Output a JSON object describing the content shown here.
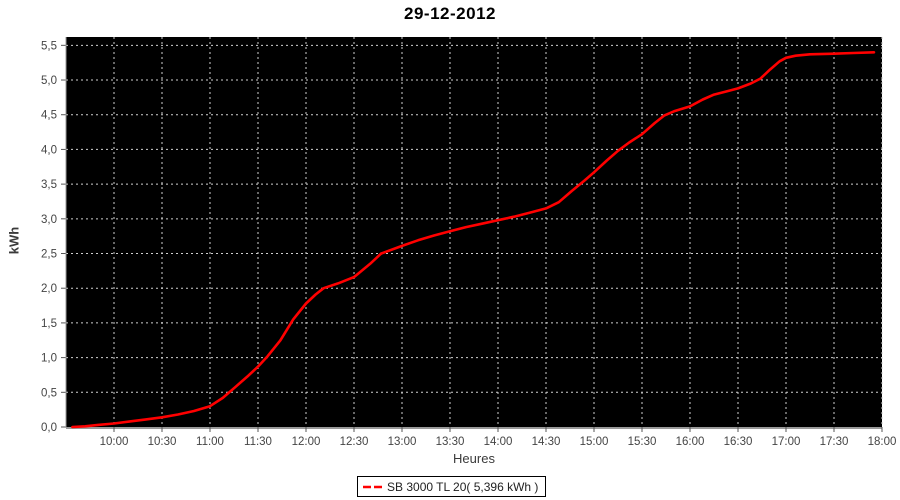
{
  "title": "29-12-2012",
  "axes": {
    "x_label": "Heures",
    "y_label": "kWh"
  },
  "legend": {
    "label": "SB 3000 TL 20( 5,396 kWh )",
    "swatch_color": "#ff0000"
  },
  "colors": {
    "plot_background": "#000000",
    "gridline": "#cfcfcf",
    "baseline": "#9a9a9a",
    "tick": "#555555",
    "tick_label": "#444444",
    "line": "#ff0000",
    "page_background": "#ffffff"
  },
  "chart_data": {
    "type": "line",
    "title": "29-12-2012",
    "xlabel": "Heures",
    "ylabel": "kWh",
    "grid": "dashed",
    "legend_position": "bottom-center",
    "plot_bg": "#000000",
    "x_start": "09:30",
    "x_end": "18:00",
    "x_ticks": [
      "10:00",
      "10:30",
      "11:00",
      "11:30",
      "12:00",
      "12:30",
      "13:00",
      "13:30",
      "14:00",
      "14:30",
      "15:00",
      "15:30",
      "16:00",
      "16:30",
      "17:00",
      "17:30",
      "18:00"
    ],
    "y_ticks": [
      "0,0",
      "0,5",
      "1,0",
      "1,5",
      "2,0",
      "2,5",
      "3,0",
      "3,5",
      "4,0",
      "4,5",
      "5,0",
      "5,5"
    ],
    "y_tick_values": [
      0,
      0.5,
      1,
      1.5,
      2,
      2.5,
      3,
      3.5,
      4,
      4.5,
      5,
      5.5
    ],
    "ylim": [
      0,
      5.62
    ],
    "series": [
      {
        "name": "SB 3000 TL 20( 5,396 kWh )",
        "color": "#ff0000",
        "total_kwh": "5,396",
        "points": [
          [
            "09:34",
            0.0
          ],
          [
            "09:42",
            0.01
          ],
          [
            "09:50",
            0.03
          ],
          [
            "10:00",
            0.05
          ],
          [
            "10:10",
            0.08
          ],
          [
            "10:20",
            0.11
          ],
          [
            "10:30",
            0.14
          ],
          [
            "10:40",
            0.18
          ],
          [
            "10:50",
            0.23
          ],
          [
            "11:00",
            0.3
          ],
          [
            "11:08",
            0.42
          ],
          [
            "11:16",
            0.58
          ],
          [
            "11:24",
            0.74
          ],
          [
            "11:30",
            0.87
          ],
          [
            "11:36",
            1.02
          ],
          [
            "11:44",
            1.25
          ],
          [
            "11:52",
            1.55
          ],
          [
            "12:00",
            1.78
          ],
          [
            "12:06",
            1.91
          ],
          [
            "12:11",
            2.0
          ],
          [
            "12:20",
            2.07
          ],
          [
            "12:30",
            2.16
          ],
          [
            "12:40",
            2.35
          ],
          [
            "12:47",
            2.5
          ],
          [
            "13:00",
            2.61
          ],
          [
            "13:10",
            2.69
          ],
          [
            "13:20",
            2.76
          ],
          [
            "13:30",
            2.82
          ],
          [
            "13:40",
            2.88
          ],
          [
            "13:50",
            2.93
          ],
          [
            "14:00",
            2.98
          ],
          [
            "14:10",
            3.03
          ],
          [
            "14:20",
            3.09
          ],
          [
            "14:30",
            3.15
          ],
          [
            "14:38",
            3.24
          ],
          [
            "14:46",
            3.4
          ],
          [
            "14:54",
            3.55
          ],
          [
            "15:00",
            3.67
          ],
          [
            "15:08",
            3.84
          ],
          [
            "15:15",
            3.98
          ],
          [
            "15:22",
            4.1
          ],
          [
            "15:30",
            4.22
          ],
          [
            "15:38",
            4.38
          ],
          [
            "15:44",
            4.49
          ],
          [
            "15:50",
            4.55
          ],
          [
            "16:00",
            4.62
          ],
          [
            "16:08",
            4.72
          ],
          [
            "16:15",
            4.79
          ],
          [
            "16:22",
            4.83
          ],
          [
            "16:30",
            4.88
          ],
          [
            "16:38",
            4.95
          ],
          [
            "16:44",
            5.02
          ],
          [
            "16:50",
            5.15
          ],
          [
            "16:56",
            5.27
          ],
          [
            "17:00",
            5.32
          ],
          [
            "17:06",
            5.35
          ],
          [
            "17:15",
            5.37
          ],
          [
            "17:30",
            5.38
          ],
          [
            "17:42",
            5.39
          ],
          [
            "17:55",
            5.4
          ]
        ]
      }
    ]
  }
}
